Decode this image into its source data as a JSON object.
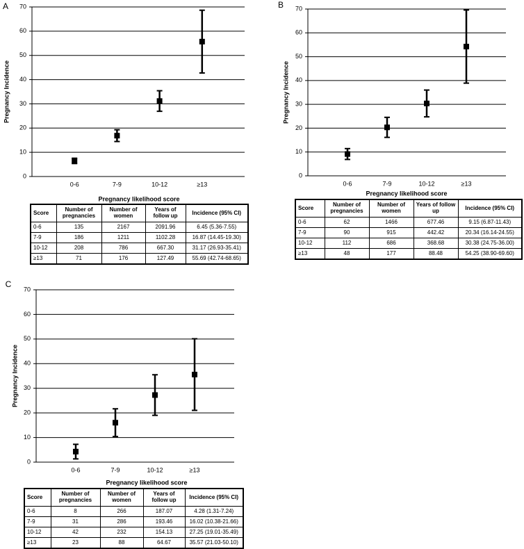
{
  "chart_data": [
    {
      "type": "errorbar",
      "panel_label": "A",
      "x_label": "Pregnancy likelihood score",
      "y_label": "Pregnancy Incidence",
      "categories": [
        "0-6",
        "7-9",
        "10-12",
        "≥13"
      ],
      "ylim": [
        0,
        70
      ],
      "yticks": [
        0,
        10,
        20,
        30,
        40,
        50,
        60,
        70
      ],
      "grid": true,
      "color": "#000000",
      "series": [
        {
          "values": [
            6.45,
            16.87,
            31.17,
            55.69
          ],
          "lower": [
            5.36,
            14.45,
            26.93,
            42.74
          ],
          "upper": [
            7.55,
            19.3,
            35.41,
            68.65
          ]
        }
      ]
    },
    {
      "type": "errorbar",
      "panel_label": "B",
      "x_label": "Pregnancy likelihood score",
      "y_label": "Pregnancy Incidence",
      "categories": [
        "0-6",
        "7-9",
        "10-12",
        "≥13"
      ],
      "ylim": [
        0,
        70
      ],
      "yticks": [
        0,
        10,
        20,
        30,
        40,
        50,
        60,
        70
      ],
      "grid": true,
      "color": "#000000",
      "series": [
        {
          "values": [
            9.15,
            20.34,
            30.38,
            54.25
          ],
          "lower": [
            6.87,
            16.14,
            24.75,
            38.9
          ],
          "upper": [
            11.43,
            24.55,
            36.0,
            69.6
          ]
        }
      ]
    },
    {
      "type": "errorbar",
      "panel_label": "C",
      "x_label": "Pregnancy likelihood score",
      "y_label": "Pregnancy Incidence",
      "categories": [
        "0-6",
        "7-9",
        "10-12",
        "≥13"
      ],
      "ylim": [
        0,
        70
      ],
      "yticks": [
        0,
        10,
        20,
        30,
        40,
        50,
        60,
        70
      ],
      "grid": true,
      "color": "#000000",
      "series": [
        {
          "values": [
            4.28,
            16.02,
            27.25,
            35.57
          ],
          "lower": [
            1.31,
            10.38,
            19.01,
            21.03
          ],
          "upper": [
            7.24,
            21.66,
            35.49,
            50.1
          ]
        }
      ]
    }
  ],
  "tables": [
    {
      "header": [
        "Score",
        "Number of pregnancies",
        "Number of women",
        "Years of follow up",
        "Incidence (95% CI)"
      ],
      "rows": [
        [
          "0-6",
          "135",
          "2167",
          "2091.96",
          "6.45 (5.36-7.55)"
        ],
        [
          "7-9",
          "186",
          "1211",
          "1102.28",
          "16.87 (14.45-19.30)"
        ],
        [
          "10-12",
          "208",
          "786",
          "667.30",
          "31.17 (26.93-35.41)"
        ],
        [
          "≥13",
          "71",
          "176",
          "127.49",
          "55.69 (42.74-68.65)"
        ]
      ]
    },
    {
      "header": [
        "Score",
        "Number of pregnancies",
        "Number of women",
        "Years of follow up",
        "Incidence (95% CI)"
      ],
      "rows": [
        [
          "0-6",
          "62",
          "1466",
          "677.46",
          "9.15 (6.87-11.43)"
        ],
        [
          "7-9",
          "90",
          "915",
          "442.42",
          "20.34 (16.14-24.55)"
        ],
        [
          "10-12",
          "112",
          "686",
          "368.68",
          "30.38 (24.75-36.00)"
        ],
        [
          "≥13",
          "48",
          "177",
          "88.48",
          "54.25 (38.90-69.60)"
        ]
      ]
    },
    {
      "header": [
        "Score",
        "Number of pregnancies",
        "Number of women",
        "Years of follow up",
        "Incidence (95% CI)"
      ],
      "rows": [
        [
          "0-6",
          "8",
          "266",
          "187.07",
          "4.28 (1.31-7.24)"
        ],
        [
          "7-9",
          "31",
          "286",
          "193.46",
          "16.02 (10.38-21.66)"
        ],
        [
          "10-12",
          "42",
          "232",
          "154.13",
          "27.25 (19.01-35.49)"
        ],
        [
          "≥13",
          "23",
          "88",
          "64.67",
          "35.57 (21.03-50.10)"
        ]
      ]
    }
  ]
}
